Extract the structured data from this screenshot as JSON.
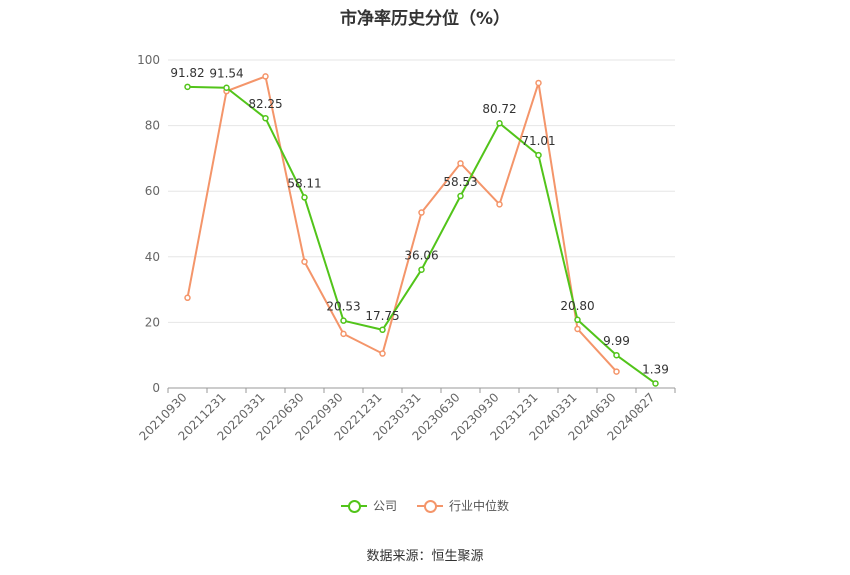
{
  "chart_data": {
    "type": "line",
    "title": "市净率历史分位（%）",
    "categories": [
      "20210930",
      "20211231",
      "20220331",
      "20220630",
      "20220930",
      "20221231",
      "20230331",
      "20230630",
      "20230930",
      "20231231",
      "20240331",
      "20240630",
      "20240827"
    ],
    "ylim": [
      0,
      100
    ],
    "yticks": [
      0,
      20,
      40,
      60,
      80,
      100
    ],
    "grid": true,
    "legend_position": "bottom",
    "series": [
      {
        "name": "公司",
        "color": "#52c41a",
        "values": [
          91.82,
          91.54,
          82.25,
          58.11,
          20.53,
          17.75,
          36.06,
          58.53,
          80.72,
          71.01,
          20.8,
          9.99,
          1.39
        ],
        "labels": [
          "91.82",
          "91.54",
          "82.25",
          "58.11",
          "20.53",
          "17.75",
          "36.06",
          "58.53",
          "80.72",
          "71.01",
          "20.80",
          "9.99",
          "1.39"
        ]
      },
      {
        "name": "行业中位数",
        "color": "#f4956a",
        "values": [
          27.5,
          90.5,
          95.0,
          38.5,
          16.5,
          10.5,
          53.5,
          68.5,
          56.0,
          93.0,
          18.0,
          5.0,
          null
        ]
      }
    ]
  },
  "source": "数据来源：恒生聚源"
}
